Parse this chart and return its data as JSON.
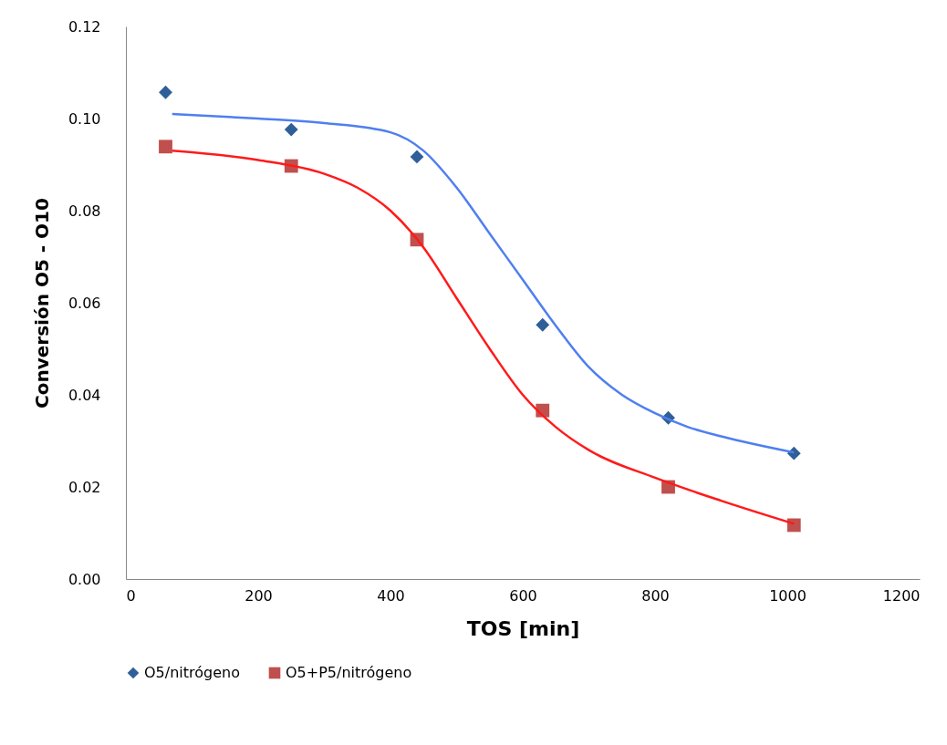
{
  "chart_data": {
    "type": "scatter",
    "xlabel": "TOS [min]",
    "ylabel": "Conversión O5 - O10",
    "xlim": [
      0,
      1200
    ],
    "xticks": [
      0,
      200,
      400,
      600,
      800,
      1000,
      1200
    ],
    "ylim": [
      0,
      0.12
    ],
    "yticks": [
      {
        "value": 0,
        "label": "0.00"
      },
      {
        "value": 0.02,
        "label": "0.02"
      },
      {
        "value": 0.04,
        "label": "0.04"
      },
      {
        "value": 0.06,
        "label": "0.06"
      },
      {
        "value": 0.08,
        "label": "0.08"
      },
      {
        "value": 0.1,
        "label": "0.10"
      },
      {
        "value": 0.12,
        "label": "0.12"
      }
    ],
    "grid": false,
    "legend": "bottom",
    "series": [
      {
        "name": "O5/nitrógeno",
        "marker": "diamond",
        "color": "#2f5f98",
        "x": [
          60,
          250,
          440,
          630,
          820,
          1010
        ],
        "values": [
          0.1057,
          0.0976,
          0.0917,
          0.0552,
          0.035,
          0.0273
        ]
      },
      {
        "name": "O5+P5/nitrógeno",
        "marker": "square",
        "color": "#c0504d",
        "x": [
          60,
          250,
          440,
          630,
          820,
          1010
        ],
        "values": [
          0.0939,
          0.0897,
          0.0737,
          0.0366,
          0.02,
          0.0117
        ]
      },
      {
        "type": "line",
        "marker": "none",
        "line_style": "solid",
        "color": "#4f7ff0",
        "x": [
          70,
          200,
          300,
          400,
          450,
          500,
          550,
          600,
          650,
          700,
          750,
          800,
          850,
          900,
          1010
        ],
        "values": [
          0.101,
          0.1,
          0.099,
          0.097,
          0.093,
          0.085,
          0.075,
          0.065,
          0.055,
          0.046,
          0.04,
          0.036,
          0.033,
          0.031,
          0.0275
        ]
      },
      {
        "type": "line",
        "marker": "none",
        "line_style": "solid",
        "color": "#ff1a1a",
        "x": [
          70,
          200,
          300,
          350,
          400,
          450,
          500,
          550,
          600,
          650,
          700,
          800,
          900,
          1010
        ],
        "values": [
          0.093,
          0.091,
          0.088,
          0.085,
          0.08,
          0.072,
          0.061,
          0.05,
          0.04,
          0.033,
          0.028,
          0.022,
          0.017,
          0.012
        ]
      }
    ]
  }
}
